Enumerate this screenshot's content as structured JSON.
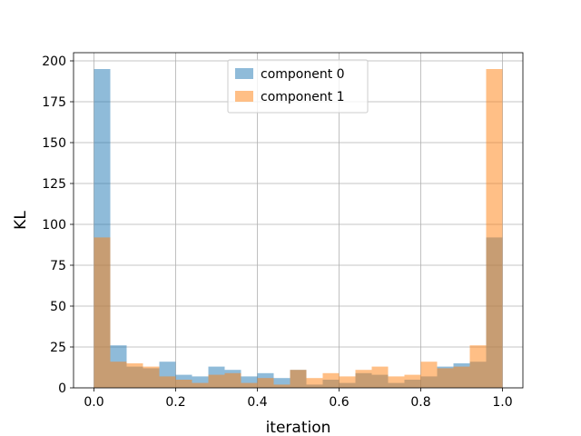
{
  "chart_data": {
    "type": "bar",
    "title": "",
    "xlabel": "iteration",
    "ylabel": "KL",
    "xlim": [
      -0.05,
      1.05
    ],
    "ylim": [
      0,
      205
    ],
    "xticks": [
      0.0,
      0.2,
      0.4,
      0.6,
      0.8,
      1.0
    ],
    "xtick_labels": [
      "0.0",
      "0.2",
      "0.4",
      "0.6",
      "0.8",
      "1.0"
    ],
    "yticks": [
      0,
      25,
      50,
      75,
      100,
      125,
      150,
      175,
      200
    ],
    "ytick_labels": [
      "0",
      "25",
      "50",
      "75",
      "100",
      "125",
      "150",
      "175",
      "200"
    ],
    "grid": true,
    "legend_position": "upper-center",
    "bin_edges": [
      0.0,
      0.04,
      0.08,
      0.12,
      0.16,
      0.2,
      0.24,
      0.28,
      0.32,
      0.36,
      0.4,
      0.44,
      0.48,
      0.52,
      0.56,
      0.6,
      0.64,
      0.68,
      0.72,
      0.76,
      0.8,
      0.84,
      0.88,
      0.92,
      0.96,
      1.0
    ],
    "series": [
      {
        "name": "component 0",
        "color": "#1f77b4",
        "values": [
          195,
          26,
          13,
          12,
          16,
          8,
          7,
          13,
          11,
          7,
          9,
          6,
          11,
          2,
          5,
          3,
          9,
          8,
          3,
          5,
          7,
          13,
          15,
          16,
          92
        ]
      },
      {
        "name": "component 1",
        "color": "#ff7f0e",
        "values": [
          92,
          16,
          15,
          13,
          7,
          5,
          3,
          8,
          9,
          3,
          6,
          2,
          11,
          6,
          9,
          7,
          11,
          13,
          7,
          8,
          16,
          12,
          13,
          26,
          195
        ]
      }
    ]
  }
}
